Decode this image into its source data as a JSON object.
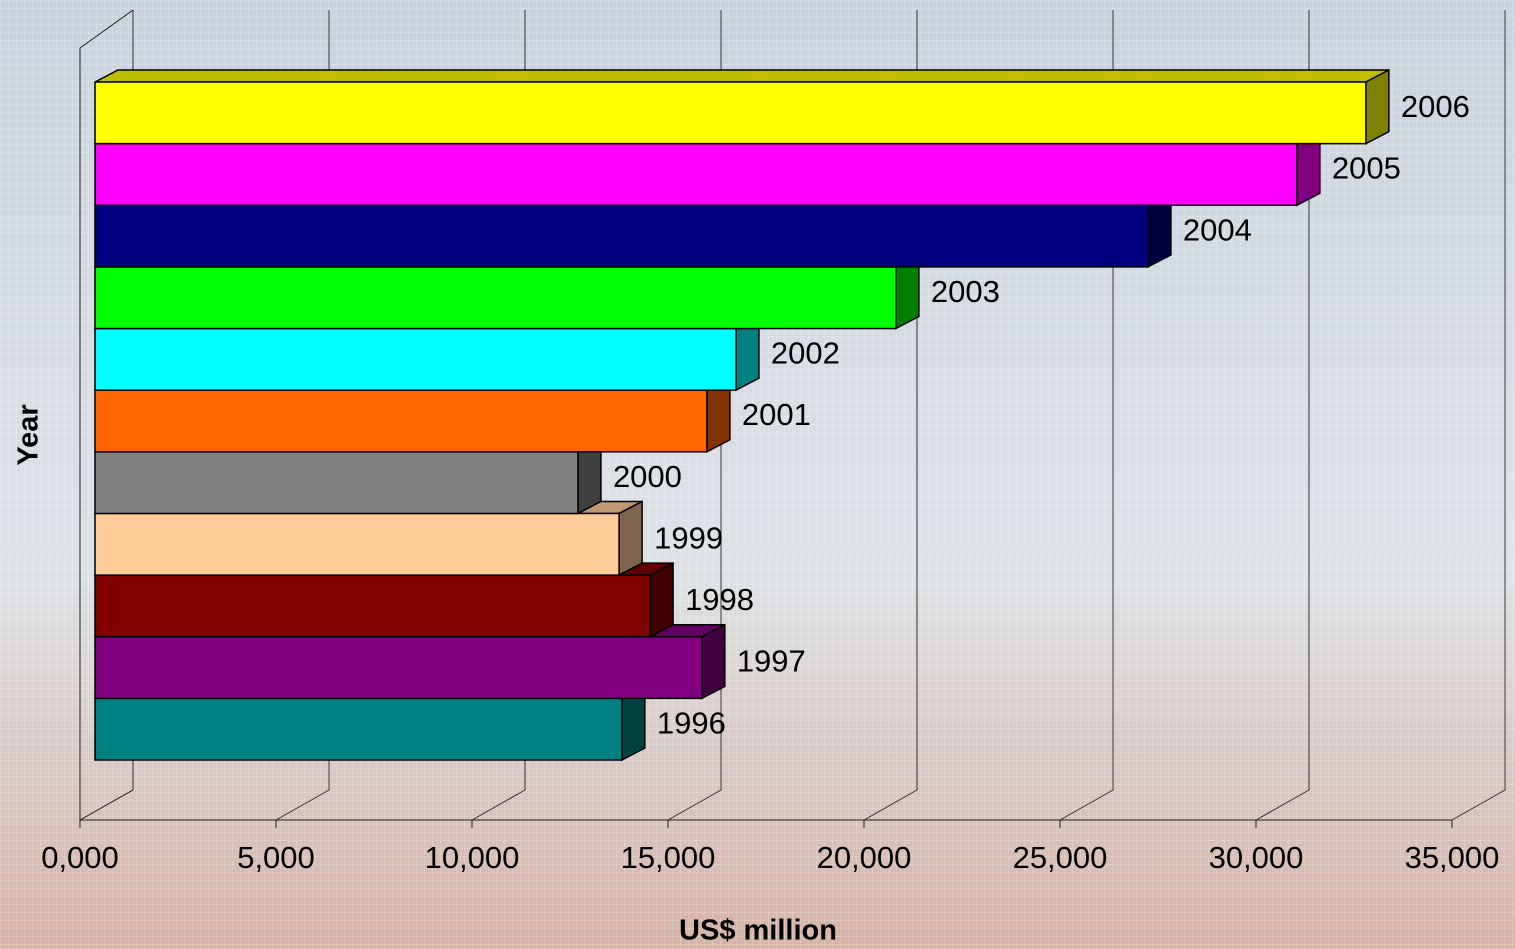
{
  "chart_data": {
    "type": "bar3d",
    "orientation": "horizontal",
    "x_label": "US$ million",
    "y_label": "Year",
    "categories": [
      "1996",
      "1997",
      "1998",
      "1999",
      "2000",
      "2001",
      "2002",
      "2003",
      "2004",
      "2005",
      "2006"
    ],
    "values": [
      13440,
      15480,
      14160,
      13370,
      12320,
      15610,
      16350,
      20430,
      26860,
      30660,
      32420
    ],
    "colors": [
      "#008080",
      "#800080",
      "#800000",
      "#ffcc99",
      "#808080",
      "#ff6600",
      "#00ffff",
      "#00ff00",
      "#000080",
      "#ff00ff",
      "#ffff00"
    ],
    "xlim": [
      0,
      35000
    ],
    "xticks": [
      {
        "value": 0,
        "label": "0,000"
      },
      {
        "value": 5000,
        "label": "5,000"
      },
      {
        "value": 10000,
        "label": "10,000"
      },
      {
        "value": 15000,
        "label": "15,000"
      },
      {
        "value": 20000,
        "label": "20,000"
      },
      {
        "value": 25000,
        "label": "25,000"
      },
      {
        "value": 30000,
        "label": "30,000"
      },
      {
        "value": 35000,
        "label": "35,000"
      }
    ],
    "grid": true
  }
}
